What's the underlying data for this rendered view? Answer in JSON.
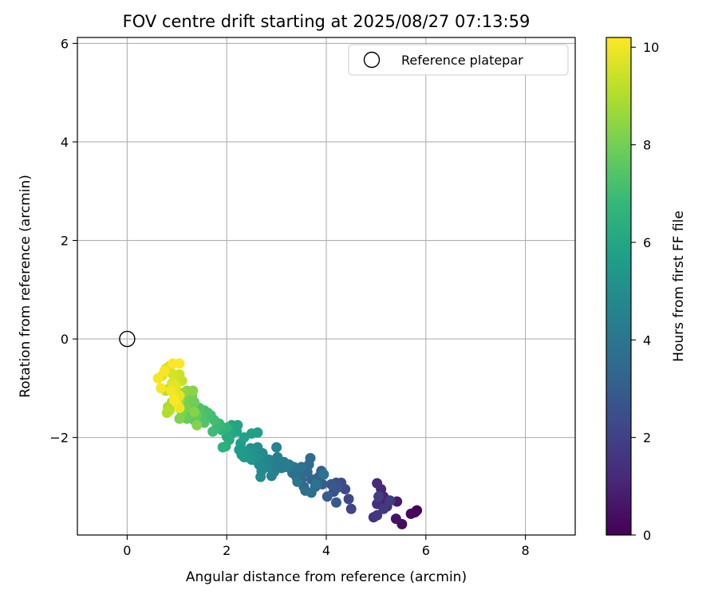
{
  "chart_data": {
    "type": "scatter",
    "title": "FOV centre drift starting at 2025/08/27 07:13:59",
    "xlabel": "Angular distance from reference (arcmin)",
    "ylabel": "Rotation from reference (arcmin)",
    "xlim": [
      -1.0,
      9.0
    ],
    "ylim": [
      -3.98,
      6.12
    ],
    "xticks": [
      0,
      2,
      4,
      6,
      8
    ],
    "xtick_labels": [
      "0",
      "2",
      "4",
      "6",
      "8"
    ],
    "yticks": [
      -2,
      0,
      2,
      4,
      6
    ],
    "ytick_labels": [
      "−2",
      "0",
      "2",
      "4",
      "6"
    ],
    "grid": true,
    "legend": {
      "position": "top-right",
      "entries": [
        "Reference platepar"
      ]
    },
    "reference_point": {
      "x": 0,
      "y": 0,
      "label": "Reference platepar",
      "marker": "open-circle"
    },
    "colorbar": {
      "label": "Hours from first FF file",
      "range": [
        0,
        10.2
      ],
      "ticks": [
        0,
        2,
        4,
        6,
        8,
        10
      ],
      "colormap": "viridis",
      "colors": [
        "#440154",
        "#482878",
        "#3e4989",
        "#31688e",
        "#26828e",
        "#1f9e89",
        "#35b779",
        "#6ece58",
        "#b5de2b",
        "#fde725"
      ]
    },
    "points": [
      {
        "x": 5.82,
        "y": -3.48,
        "t": 0.05
      },
      {
        "x": 5.78,
        "y": -3.52,
        "t": 0.12
      },
      {
        "x": 5.7,
        "y": -3.55,
        "t": 0.2
      },
      {
        "x": 5.52,
        "y": -3.76,
        "t": 0.35
      },
      {
        "x": 5.4,
        "y": -3.65,
        "t": 0.5
      },
      {
        "x": 5.42,
        "y": -3.3,
        "t": 0.7
      },
      {
        "x": 5.2,
        "y": -3.3,
        "t": 0.9
      },
      {
        "x": 5.15,
        "y": -3.2,
        "t": 1.0
      },
      {
        "x": 5.1,
        "y": -3.05,
        "t": 1.1
      },
      {
        "x": 5.02,
        "y": -2.93,
        "t": 1.2
      },
      {
        "x": 5.02,
        "y": -3.35,
        "t": 1.3
      },
      {
        "x": 5.22,
        "y": -3.4,
        "t": 1.4
      },
      {
        "x": 4.95,
        "y": -3.62,
        "t": 1.5
      },
      {
        "x": 5.02,
        "y": -3.58,
        "t": 1.6
      },
      {
        "x": 5.15,
        "y": -3.45,
        "t": 1.7
      },
      {
        "x": 5.28,
        "y": -3.28,
        "t": 1.8
      },
      {
        "x": 5.05,
        "y": -3.2,
        "t": 1.9
      },
      {
        "x": 4.5,
        "y": -3.45,
        "t": 2.1
      },
      {
        "x": 4.45,
        "y": -3.25,
        "t": 2.2
      },
      {
        "x": 4.38,
        "y": -3.05,
        "t": 2.3
      },
      {
        "x": 4.3,
        "y": -2.92,
        "t": 2.4
      },
      {
        "x": 4.2,
        "y": -2.92,
        "t": 2.5
      },
      {
        "x": 4.15,
        "y": -3.1,
        "t": 2.6
      },
      {
        "x": 4.22,
        "y": -3.02,
        "t": 2.7
      },
      {
        "x": 4.1,
        "y": -2.95,
        "t": 2.8
      },
      {
        "x": 4.2,
        "y": -3.32,
        "t": 2.9
      },
      {
        "x": 4.02,
        "y": -3.2,
        "t": 3.0
      },
      {
        "x": 3.92,
        "y": -2.95,
        "t": 3.05
      },
      {
        "x": 3.85,
        "y": -2.8,
        "t": 3.1
      },
      {
        "x": 3.9,
        "y": -2.68,
        "t": 3.15
      },
      {
        "x": 3.78,
        "y": -3.0,
        "t": 3.2
      },
      {
        "x": 3.7,
        "y": -2.85,
        "t": 3.3
      },
      {
        "x": 3.62,
        "y": -2.7,
        "t": 3.35
      },
      {
        "x": 3.55,
        "y": -3.0,
        "t": 3.4
      },
      {
        "x": 3.65,
        "y": -2.55,
        "t": 3.45
      },
      {
        "x": 3.68,
        "y": -2.42,
        "t": 3.5
      },
      {
        "x": 3.5,
        "y": -2.85,
        "t": 3.55
      },
      {
        "x": 3.48,
        "y": -2.7,
        "t": 3.6
      },
      {
        "x": 3.4,
        "y": -2.8,
        "t": 3.65
      },
      {
        "x": 3.58,
        "y": -3.08,
        "t": 3.7
      },
      {
        "x": 3.7,
        "y": -3.12,
        "t": 3.75
      },
      {
        "x": 3.32,
        "y": -2.72,
        "t": 3.8
      },
      {
        "x": 3.5,
        "y": -2.6,
        "t": 3.85
      },
      {
        "x": 3.8,
        "y": -2.95,
        "t": 3.9
      },
      {
        "x": 3.95,
        "y": -2.75,
        "t": 3.95
      },
      {
        "x": 3.35,
        "y": -2.6,
        "t": 4.0
      },
      {
        "x": 3.42,
        "y": -2.9,
        "t": 4.05
      },
      {
        "x": 3.25,
        "y": -2.55,
        "t": 4.1
      },
      {
        "x": 3.15,
        "y": -2.5,
        "t": 4.15
      },
      {
        "x": 3.1,
        "y": -2.62,
        "t": 4.2
      },
      {
        "x": 3.2,
        "y": -2.6,
        "t": 4.25
      },
      {
        "x": 3.05,
        "y": -2.48,
        "t": 4.3
      },
      {
        "x": 2.98,
        "y": -2.55,
        "t": 4.35
      },
      {
        "x": 3.02,
        "y": -2.4,
        "t": 4.4
      },
      {
        "x": 2.95,
        "y": -2.7,
        "t": 4.45
      },
      {
        "x": 2.9,
        "y": -2.6,
        "t": 4.5
      },
      {
        "x": 2.9,
        "y": -2.78,
        "t": 4.55
      },
      {
        "x": 3.0,
        "y": -2.2,
        "t": 4.6
      },
      {
        "x": 2.85,
        "y": -2.45,
        "t": 4.65
      },
      {
        "x": 2.8,
        "y": -2.6,
        "t": 4.7
      },
      {
        "x": 2.75,
        "y": -2.48,
        "t": 4.75
      },
      {
        "x": 2.7,
        "y": -2.68,
        "t": 4.8
      },
      {
        "x": 2.72,
        "y": -2.32,
        "t": 4.85
      },
      {
        "x": 2.65,
        "y": -2.55,
        "t": 4.9
      },
      {
        "x": 2.68,
        "y": -2.8,
        "t": 4.95
      },
      {
        "x": 2.6,
        "y": -2.4,
        "t": 5.0
      },
      {
        "x": 2.62,
        "y": -2.2,
        "t": 5.05
      },
      {
        "x": 2.55,
        "y": -2.45,
        "t": 5.1
      },
      {
        "x": 2.52,
        "y": -2.3,
        "t": 5.15
      },
      {
        "x": 2.48,
        "y": -2.22,
        "t": 5.2
      },
      {
        "x": 2.5,
        "y": -2.45,
        "t": 5.3
      },
      {
        "x": 2.42,
        "y": -2.4,
        "t": 5.35
      },
      {
        "x": 2.38,
        "y": -2.28,
        "t": 5.4
      },
      {
        "x": 2.35,
        "y": -2.4,
        "t": 5.45
      },
      {
        "x": 2.3,
        "y": -2.35,
        "t": 5.5
      },
      {
        "x": 2.25,
        "y": -2.25,
        "t": 5.55
      },
      {
        "x": 2.28,
        "y": -2.12,
        "t": 5.6
      },
      {
        "x": 2.62,
        "y": -1.9,
        "t": 5.7
      },
      {
        "x": 2.5,
        "y": -1.92,
        "t": 5.75
      },
      {
        "x": 2.35,
        "y": -2.0,
        "t": 5.8
      },
      {
        "x": 2.2,
        "y": -1.88,
        "t": 5.85
      },
      {
        "x": 2.22,
        "y": -1.75,
        "t": 5.9
      },
      {
        "x": 2.1,
        "y": -1.75,
        "t": 6.0
      },
      {
        "x": 2.1,
        "y": -1.92,
        "t": 6.1
      },
      {
        "x": 2.05,
        "y": -2.05,
        "t": 6.2
      },
      {
        "x": 2.0,
        "y": -1.98,
        "t": 6.3
      },
      {
        "x": 1.98,
        "y": -2.18,
        "t": 6.4
      },
      {
        "x": 1.92,
        "y": -2.2,
        "t": 6.5
      },
      {
        "x": 2.0,
        "y": -1.8,
        "t": 6.6
      },
      {
        "x": 1.9,
        "y": -1.85,
        "t": 6.7
      },
      {
        "x": 1.8,
        "y": -1.8,
        "t": 6.8
      },
      {
        "x": 1.85,
        "y": -1.72,
        "t": 6.9
      },
      {
        "x": 1.72,
        "y": -1.88,
        "t": 7.0
      },
      {
        "x": 1.75,
        "y": -1.65,
        "t": 7.05
      },
      {
        "x": 1.68,
        "y": -1.55,
        "t": 7.1
      },
      {
        "x": 1.62,
        "y": -1.5,
        "t": 7.15
      },
      {
        "x": 1.55,
        "y": -1.45,
        "t": 7.2
      },
      {
        "x": 1.5,
        "y": -1.58,
        "t": 7.3
      },
      {
        "x": 1.45,
        "y": -1.4,
        "t": 7.35
      },
      {
        "x": 1.55,
        "y": -1.7,
        "t": 7.4
      },
      {
        "x": 1.4,
        "y": -1.72,
        "t": 7.45
      },
      {
        "x": 1.35,
        "y": -1.65,
        "t": 7.5
      },
      {
        "x": 1.3,
        "y": -1.58,
        "t": 7.55
      },
      {
        "x": 1.25,
        "y": -1.5,
        "t": 7.6
      },
      {
        "x": 1.28,
        "y": -1.4,
        "t": 7.7
      },
      {
        "x": 1.4,
        "y": -1.55,
        "t": 7.75
      },
      {
        "x": 1.2,
        "y": -1.62,
        "t": 7.8
      },
      {
        "x": 1.22,
        "y": -1.35,
        "t": 7.85
      },
      {
        "x": 1.35,
        "y": -1.28,
        "t": 7.9
      },
      {
        "x": 1.3,
        "y": -1.15,
        "t": 7.95
      },
      {
        "x": 1.25,
        "y": -1.22,
        "t": 8.0
      },
      {
        "x": 1.15,
        "y": -1.25,
        "t": 8.05
      },
      {
        "x": 1.18,
        "y": -1.4,
        "t": 8.1
      },
      {
        "x": 1.1,
        "y": -1.5,
        "t": 8.15
      },
      {
        "x": 1.05,
        "y": -1.62,
        "t": 8.2
      },
      {
        "x": 1.4,
        "y": -1.75,
        "t": 8.25
      },
      {
        "x": 1.35,
        "y": -1.48,
        "t": 8.3
      },
      {
        "x": 1.32,
        "y": -1.05,
        "t": 8.35
      },
      {
        "x": 1.2,
        "y": -1.05,
        "t": 8.4
      },
      {
        "x": 1.12,
        "y": -1.1,
        "t": 8.5
      },
      {
        "x": 1.0,
        "y": -1.1,
        "t": 8.6
      },
      {
        "x": 1.05,
        "y": -1.25,
        "t": 8.7
      },
      {
        "x": 0.95,
        "y": -1.32,
        "t": 8.8
      },
      {
        "x": 0.9,
        "y": -1.28,
        "t": 8.85
      },
      {
        "x": 0.82,
        "y": -1.38,
        "t": 8.9
      },
      {
        "x": 0.8,
        "y": -1.5,
        "t": 9.0
      },
      {
        "x": 0.85,
        "y": -1.45,
        "t": 9.05
      },
      {
        "x": 0.78,
        "y": -1.05,
        "t": 9.1
      },
      {
        "x": 0.85,
        "y": -1.0,
        "t": 9.15
      },
      {
        "x": 0.98,
        "y": -1.02,
        "t": 9.2
      },
      {
        "x": 1.1,
        "y": -0.85,
        "t": 9.3
      },
      {
        "x": 1.05,
        "y": -0.72,
        "t": 9.4
      },
      {
        "x": 0.95,
        "y": -0.8,
        "t": 9.5
      },
      {
        "x": 0.9,
        "y": -0.7,
        "t": 9.55
      },
      {
        "x": 0.85,
        "y": -0.55,
        "t": 9.6
      },
      {
        "x": 0.78,
        "y": -0.6,
        "t": 9.65
      },
      {
        "x": 0.7,
        "y": -0.75,
        "t": 9.7
      },
      {
        "x": 0.9,
        "y": -0.9,
        "t": 9.75
      },
      {
        "x": 0.98,
        "y": -0.95,
        "t": 9.8
      },
      {
        "x": 1.05,
        "y": -1.15,
        "t": 9.85
      },
      {
        "x": 1.0,
        "y": -1.3,
        "t": 9.9
      },
      {
        "x": 1.05,
        "y": -1.4,
        "t": 9.95
      },
      {
        "x": 0.95,
        "y": -1.2,
        "t": 10.0
      },
      {
        "x": 0.88,
        "y": -1.05,
        "t": 10.05
      },
      {
        "x": 0.68,
        "y": -1.0,
        "t": 10.08
      },
      {
        "x": 0.62,
        "y": -0.8,
        "t": 10.1
      },
      {
        "x": 0.75,
        "y": -0.65,
        "t": 10.12
      },
      {
        "x": 1.05,
        "y": -0.5,
        "t": 10.15
      },
      {
        "x": 0.92,
        "y": -0.5,
        "t": 10.18
      },
      {
        "x": 0.95,
        "y": -1.25,
        "t": 10.2
      }
    ]
  }
}
